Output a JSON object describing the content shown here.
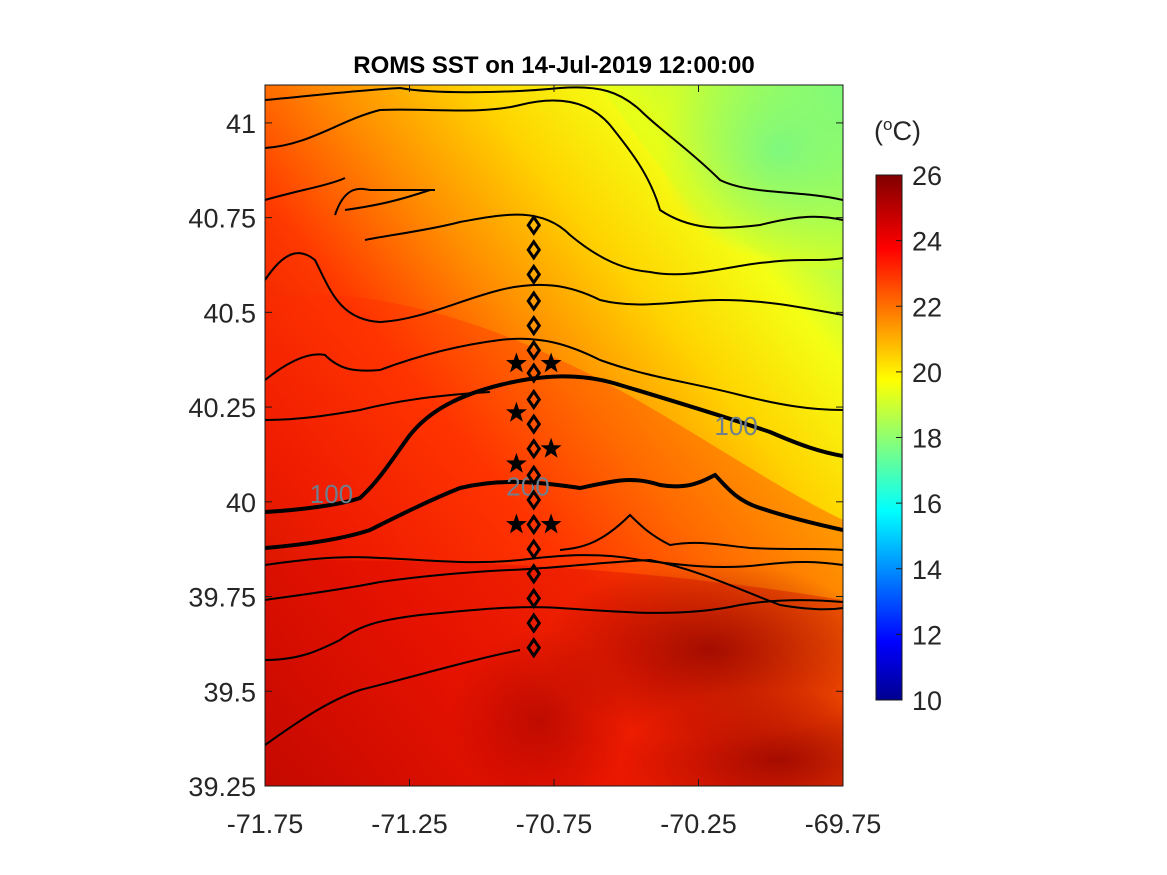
{
  "figure": {
    "title": "ROMS SST on 14-Jul-2019 12:00:00",
    "colorbar": {
      "label_prefix": "(",
      "label_superscript": "o",
      "label_suffix": "C)",
      "min": 10,
      "max": 26,
      "ticks": [
        "10",
        "12",
        "14",
        "16",
        "18",
        "20",
        "22",
        "24",
        "26"
      ],
      "colormap": "jet"
    },
    "x_axis": {
      "min": -71.75,
      "max": -69.75,
      "ticks": [
        "-71.75",
        "-71.25",
        "-70.75",
        "-70.25",
        "-69.75"
      ]
    },
    "y_axis": {
      "min": 39.25,
      "max": 41.1,
      "ticks": [
        "39.25",
        "39.5",
        "39.75",
        "40",
        "40.25",
        "40.5",
        "40.75",
        "41"
      ]
    },
    "isobath_labels": [
      {
        "text": "100",
        "lon": -71.52,
        "lat": 40.02
      },
      {
        "text": "200",
        "lon": -70.84,
        "lat": 40.04
      },
      {
        "text": "100",
        "lon": -70.12,
        "lat": 40.2
      }
    ],
    "stations": {
      "diamonds": [
        {
          "lon": -70.82,
          "lat": 40.73
        },
        {
          "lon": -70.82,
          "lat": 40.665
        },
        {
          "lon": -70.82,
          "lat": 40.6
        },
        {
          "lon": -70.82,
          "lat": 40.53
        },
        {
          "lon": -70.82,
          "lat": 40.465
        },
        {
          "lon": -70.82,
          "lat": 40.4
        },
        {
          "lon": -70.82,
          "lat": 40.34
        },
        {
          "lon": -70.82,
          "lat": 40.27
        },
        {
          "lon": -70.82,
          "lat": 40.205
        },
        {
          "lon": -70.82,
          "lat": 40.14
        },
        {
          "lon": -70.82,
          "lat": 40.07
        },
        {
          "lon": -70.82,
          "lat": 40.005
        },
        {
          "lon": -70.82,
          "lat": 39.94
        },
        {
          "lon": -70.82,
          "lat": 39.875
        },
        {
          "lon": -70.82,
          "lat": 39.81
        },
        {
          "lon": -70.82,
          "lat": 39.745
        },
        {
          "lon": -70.82,
          "lat": 39.68
        },
        {
          "lon": -70.82,
          "lat": 39.615
        }
      ],
      "stars": [
        {
          "lon": -70.88,
          "lat": 40.365
        },
        {
          "lon": -70.76,
          "lat": 40.365
        },
        {
          "lon": -70.88,
          "lat": 40.235
        },
        {
          "lon": -70.76,
          "lat": 40.14
        },
        {
          "lon": -70.88,
          "lat": 40.1
        },
        {
          "lon": -70.88,
          "lat": 39.94
        },
        {
          "lon": -70.76,
          "lat": 39.94
        }
      ]
    }
  }
}
